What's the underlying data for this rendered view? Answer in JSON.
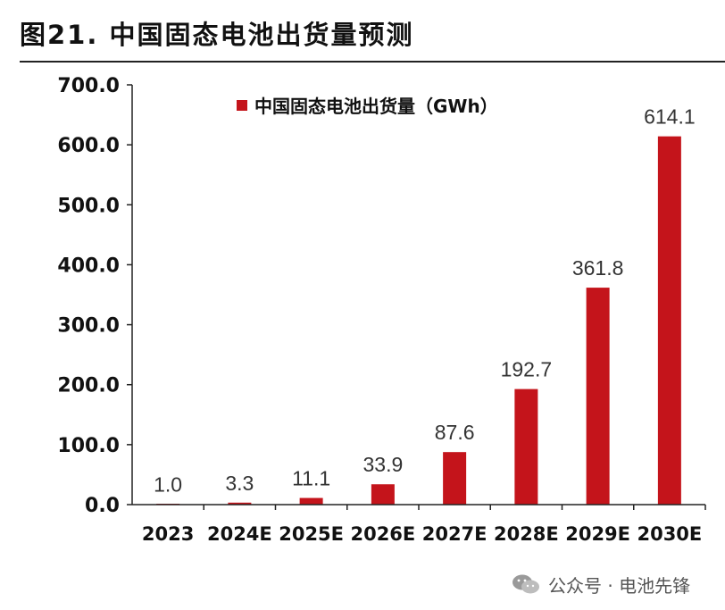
{
  "header": {
    "title": "图21. 中国固态电池出货量预测"
  },
  "chart_data": {
    "type": "bar",
    "categories": [
      "2023",
      "2024E",
      "2025E",
      "2026E",
      "2027E",
      "2028E",
      "2029E",
      "2030E"
    ],
    "series": [
      {
        "name": "中国固态电池出货量（GWh）",
        "values": [
          1.0,
          3.3,
          11.1,
          33.9,
          87.6,
          192.7,
          361.8,
          614.1
        ],
        "color": "#C4141B"
      }
    ],
    "data_labels": [
      "1.0",
      "3.3",
      "11.1",
      "33.9",
      "87.6",
      "192.7",
      "361.8",
      "614.1"
    ],
    "y_ticks": [
      "0.0",
      "100.0",
      "200.0",
      "300.0",
      "400.0",
      "500.0",
      "600.0",
      "700.0"
    ],
    "ylim": [
      0,
      700
    ],
    "grid": false,
    "legend_position": "top"
  },
  "footer": {
    "watermark": "公众号 · 电池先锋",
    "watermark_icon": "wechat-icon"
  }
}
